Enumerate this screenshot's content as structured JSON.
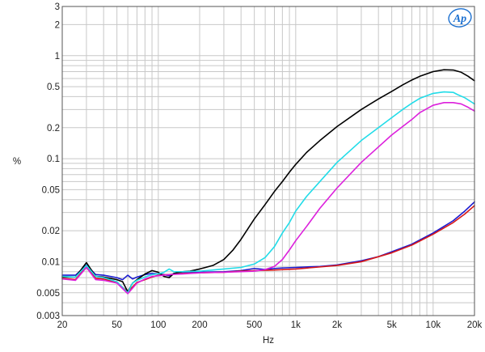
{
  "chart_data": {
    "type": "line",
    "xlabel": "Hz",
    "ylabel": "%",
    "xscale": "log",
    "yscale": "log",
    "xlim": [
      20,
      20000
    ],
    "ylim": [
      0.003,
      3
    ],
    "grid": true,
    "logo": "Ap",
    "xticks": [
      {
        "v": 20,
        "label": "20"
      },
      {
        "v": 50,
        "label": "50"
      },
      {
        "v": 100,
        "label": "100"
      },
      {
        "v": 200,
        "label": "200"
      },
      {
        "v": 500,
        "label": "500"
      },
      {
        "v": 1000,
        "label": "1k"
      },
      {
        "v": 2000,
        "label": "2k"
      },
      {
        "v": 5000,
        "label": "5k"
      },
      {
        "v": 10000,
        "label": "10k"
      },
      {
        "v": 20000,
        "label": "20k"
      }
    ],
    "yticks": [
      {
        "v": 3,
        "label": "3"
      },
      {
        "v": 2,
        "label": "2"
      },
      {
        "v": 1,
        "label": "1"
      },
      {
        "v": 0.5,
        "label": "0.5"
      },
      {
        "v": 0.2,
        "label": "0.2"
      },
      {
        "v": 0.1,
        "label": "0.1"
      },
      {
        "v": 0.05,
        "label": "0.05"
      },
      {
        "v": 0.02,
        "label": "0.02"
      },
      {
        "v": 0.01,
        "label": "0.01"
      },
      {
        "v": 0.005,
        "label": "0.005"
      },
      {
        "v": 0.003,
        "label": "0.003"
      }
    ],
    "series": [
      {
        "color": "#1a1ad0",
        "points": [
          [
            20,
            0.0074
          ],
          [
            25,
            0.0074
          ],
          [
            30,
            0.0093
          ],
          [
            35,
            0.0075
          ],
          [
            40,
            0.0074
          ],
          [
            50,
            0.007
          ],
          [
            55,
            0.0067
          ],
          [
            60,
            0.0074
          ],
          [
            65,
            0.0068
          ],
          [
            70,
            0.0071
          ],
          [
            80,
            0.0075
          ],
          [
            90,
            0.0077
          ],
          [
            100,
            0.0076
          ],
          [
            110,
            0.0075
          ],
          [
            120,
            0.0073
          ],
          [
            130,
            0.0077
          ],
          [
            150,
            0.0078
          ],
          [
            200,
            0.0079
          ],
          [
            300,
            0.008
          ],
          [
            400,
            0.0082
          ],
          [
            500,
            0.0086
          ],
          [
            600,
            0.0084
          ],
          [
            700,
            0.0086
          ],
          [
            800,
            0.0087
          ],
          [
            1000,
            0.0088
          ],
          [
            1500,
            0.009
          ],
          [
            2000,
            0.0093
          ],
          [
            3000,
            0.0102
          ],
          [
            4000,
            0.0112
          ],
          [
            5000,
            0.0125
          ],
          [
            7000,
            0.0148
          ],
          [
            10000,
            0.019
          ],
          [
            14000,
            0.025
          ],
          [
            17000,
            0.031
          ],
          [
            20000,
            0.038
          ]
        ]
      },
      {
        "color": "#d81818",
        "points": [
          [
            20,
            0.0069
          ],
          [
            25,
            0.0067
          ],
          [
            30,
            0.009
          ],
          [
            35,
            0.0069
          ],
          [
            40,
            0.0068
          ],
          [
            50,
            0.0063
          ],
          [
            60,
            0.0051
          ],
          [
            70,
            0.0063
          ],
          [
            80,
            0.0067
          ],
          [
            90,
            0.0071
          ],
          [
            100,
            0.0074
          ],
          [
            120,
            0.0075
          ],
          [
            150,
            0.0077
          ],
          [
            200,
            0.0078
          ],
          [
            300,
            0.0079
          ],
          [
            400,
            0.0081
          ],
          [
            500,
            0.0082
          ],
          [
            700,
            0.0083
          ],
          [
            1000,
            0.0085
          ],
          [
            1500,
            0.0089
          ],
          [
            2000,
            0.0092
          ],
          [
            3000,
            0.01
          ],
          [
            5000,
            0.0122
          ],
          [
            7000,
            0.0145
          ],
          [
            10000,
            0.0185
          ],
          [
            14000,
            0.024
          ],
          [
            17000,
            0.029
          ],
          [
            20000,
            0.035
          ]
        ]
      },
      {
        "color": "#000000",
        "points": [
          [
            20,
            0.0071
          ],
          [
            25,
            0.0071
          ],
          [
            30,
            0.0098
          ],
          [
            35,
            0.0072
          ],
          [
            40,
            0.0071
          ],
          [
            50,
            0.0067
          ],
          [
            55,
            0.0064
          ],
          [
            60,
            0.0051
          ],
          [
            65,
            0.0062
          ],
          [
            70,
            0.0067
          ],
          [
            80,
            0.0076
          ],
          [
            90,
            0.0082
          ],
          [
            100,
            0.0079
          ],
          [
            110,
            0.0072
          ],
          [
            120,
            0.007
          ],
          [
            130,
            0.0077
          ],
          [
            150,
            0.008
          ],
          [
            170,
            0.0081
          ],
          [
            200,
            0.0085
          ],
          [
            250,
            0.0092
          ],
          [
            300,
            0.0105
          ],
          [
            350,
            0.013
          ],
          [
            400,
            0.0165
          ],
          [
            450,
            0.021
          ],
          [
            500,
            0.026
          ],
          [
            600,
            0.036
          ],
          [
            700,
            0.048
          ],
          [
            800,
            0.06
          ],
          [
            900,
            0.074
          ],
          [
            1000,
            0.088
          ],
          [
            1200,
            0.115
          ],
          [
            1500,
            0.15
          ],
          [
            2000,
            0.205
          ],
          [
            3000,
            0.3
          ],
          [
            4000,
            0.38
          ],
          [
            5000,
            0.45
          ],
          [
            6000,
            0.52
          ],
          [
            7000,
            0.58
          ],
          [
            8000,
            0.63
          ],
          [
            10000,
            0.7
          ],
          [
            12000,
            0.73
          ],
          [
            14000,
            0.725
          ],
          [
            16000,
            0.69
          ],
          [
            18000,
            0.63
          ],
          [
            20000,
            0.57
          ]
        ]
      },
      {
        "color": "#22dce8",
        "points": [
          [
            20,
            0.0072
          ],
          [
            25,
            0.0071
          ],
          [
            30,
            0.0092
          ],
          [
            35,
            0.0072
          ],
          [
            40,
            0.007
          ],
          [
            50,
            0.0064
          ],
          [
            60,
            0.005
          ],
          [
            65,
            0.0062
          ],
          [
            70,
            0.0066
          ],
          [
            80,
            0.0071
          ],
          [
            90,
            0.0075
          ],
          [
            100,
            0.0076
          ],
          [
            110,
            0.0079
          ],
          [
            120,
            0.0085
          ],
          [
            130,
            0.008
          ],
          [
            150,
            0.008
          ],
          [
            200,
            0.0081
          ],
          [
            250,
            0.0083
          ],
          [
            300,
            0.0085
          ],
          [
            400,
            0.0088
          ],
          [
            500,
            0.0095
          ],
          [
            600,
            0.011
          ],
          [
            700,
            0.014
          ],
          [
            800,
            0.019
          ],
          [
            900,
            0.024
          ],
          [
            1000,
            0.031
          ],
          [
            1200,
            0.043
          ],
          [
            1500,
            0.06
          ],
          [
            2000,
            0.092
          ],
          [
            3000,
            0.15
          ],
          [
            4000,
            0.2
          ],
          [
            5000,
            0.25
          ],
          [
            6000,
            0.3
          ],
          [
            7000,
            0.345
          ],
          [
            8000,
            0.385
          ],
          [
            10000,
            0.43
          ],
          [
            12000,
            0.445
          ],
          [
            14000,
            0.44
          ],
          [
            15000,
            0.42
          ],
          [
            17000,
            0.39
          ],
          [
            20000,
            0.34
          ]
        ]
      },
      {
        "color": "#dc20dc",
        "points": [
          [
            20,
            0.0068
          ],
          [
            25,
            0.0066
          ],
          [
            30,
            0.0088
          ],
          [
            35,
            0.0067
          ],
          [
            40,
            0.0066
          ],
          [
            50,
            0.0062
          ],
          [
            60,
            0.0049
          ],
          [
            70,
            0.0062
          ],
          [
            80,
            0.0068
          ],
          [
            90,
            0.0072
          ],
          [
            100,
            0.0073
          ],
          [
            120,
            0.0075
          ],
          [
            150,
            0.0076
          ],
          [
            200,
            0.0078
          ],
          [
            300,
            0.0079
          ],
          [
            400,
            0.008
          ],
          [
            500,
            0.0081
          ],
          [
            600,
            0.0084
          ],
          [
            700,
            0.009
          ],
          [
            800,
            0.0105
          ],
          [
            900,
            0.013
          ],
          [
            1000,
            0.016
          ],
          [
            1200,
            0.022
          ],
          [
            1500,
            0.033
          ],
          [
            2000,
            0.052
          ],
          [
            3000,
            0.092
          ],
          [
            4000,
            0.13
          ],
          [
            5000,
            0.17
          ],
          [
            6000,
            0.205
          ],
          [
            7000,
            0.24
          ],
          [
            8000,
            0.28
          ],
          [
            10000,
            0.33
          ],
          [
            12000,
            0.35
          ],
          [
            14000,
            0.35
          ],
          [
            16000,
            0.34
          ],
          [
            18000,
            0.315
          ],
          [
            20000,
            0.29
          ]
        ]
      }
    ]
  }
}
